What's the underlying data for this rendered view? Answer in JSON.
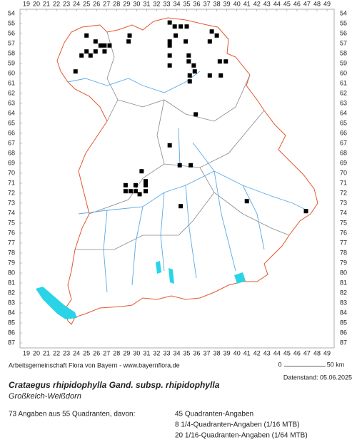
{
  "map": {
    "grid_x": [
      19,
      20,
      21,
      22,
      23,
      24,
      25,
      26,
      27,
      28,
      29,
      30,
      31,
      32,
      33,
      34,
      35,
      36,
      37,
      38,
      39,
      40,
      41,
      42,
      43,
      44,
      45,
      46,
      47,
      48,
      49
    ],
    "grid_y": [
      54,
      55,
      56,
      57,
      58,
      59,
      60,
      61,
      62,
      63,
      64,
      65,
      66,
      67,
      68,
      69,
      70,
      71,
      72,
      73,
      74,
      75,
      76,
      77,
      78,
      79,
      80,
      81,
      82,
      83,
      84,
      85,
      86,
      87
    ],
    "points": {
      "x": [
        25.0,
        25.9,
        26.4,
        26.8,
        27.3,
        25.0,
        24.5,
        25.4,
        25.9,
        26.8,
        23.9,
        33.3,
        33.8,
        34.4,
        35.0,
        29.3,
        29.2,
        33.9,
        33.3,
        33.3,
        34.9,
        37.5,
        38.0,
        37.3,
        33.3,
        35.2,
        35.2,
        35.7,
        35.8,
        35.3,
        33.3,
        35.3,
        38.3,
        38.9,
        37.3,
        38.4,
        35.9,
        33.3,
        34.3,
        35.4,
        30.5,
        28.9,
        29.9,
        30.9,
        30.9,
        28.9,
        29.4,
        29.9,
        30.9,
        30.3,
        34.4,
        41.0,
        46.9
      ],
      "y": [
        56.2,
        56.8,
        57.2,
        57.2,
        57.2,
        57.8,
        58.2,
        58.2,
        57.8,
        57.8,
        59.8,
        54.9,
        55.3,
        55.3,
        55.3,
        56.2,
        56.8,
        56.2,
        56.8,
        57.2,
        56.8,
        55.8,
        56.2,
        56.8,
        58.2,
        58.2,
        58.8,
        59.2,
        59.8,
        60.2,
        59.2,
        60.8,
        58.8,
        58.8,
        60.2,
        60.2,
        64.1,
        67.2,
        69.2,
        69.2,
        69.8,
        71.2,
        71.2,
        70.8,
        71.2,
        71.8,
        71.8,
        71.8,
        71.8,
        72.1,
        73.3,
        72.8,
        73.8
      ]
    },
    "scale": {
      "start": "0",
      "end": "50 km"
    }
  },
  "footer": {
    "credit": "Arbeitsgemeinschaft Flora von Bayern - www.bayernflora.de",
    "date": "Datenstand: 05.06.2025",
    "title": "Crataegus rhipidophylla Gand. subsp. rhipidophylla",
    "common_name": "Großkelch-Weißdorn",
    "summary": "73 Angaben aus 55 Quadranten, davon:",
    "details": [
      "45 Quadranten-Angaben",
      "8 1/4-Quadranten-Angaben (1/16 MTB)",
      "20 1/16-Quadranten-Angaben (1/64 MTB)"
    ]
  }
}
